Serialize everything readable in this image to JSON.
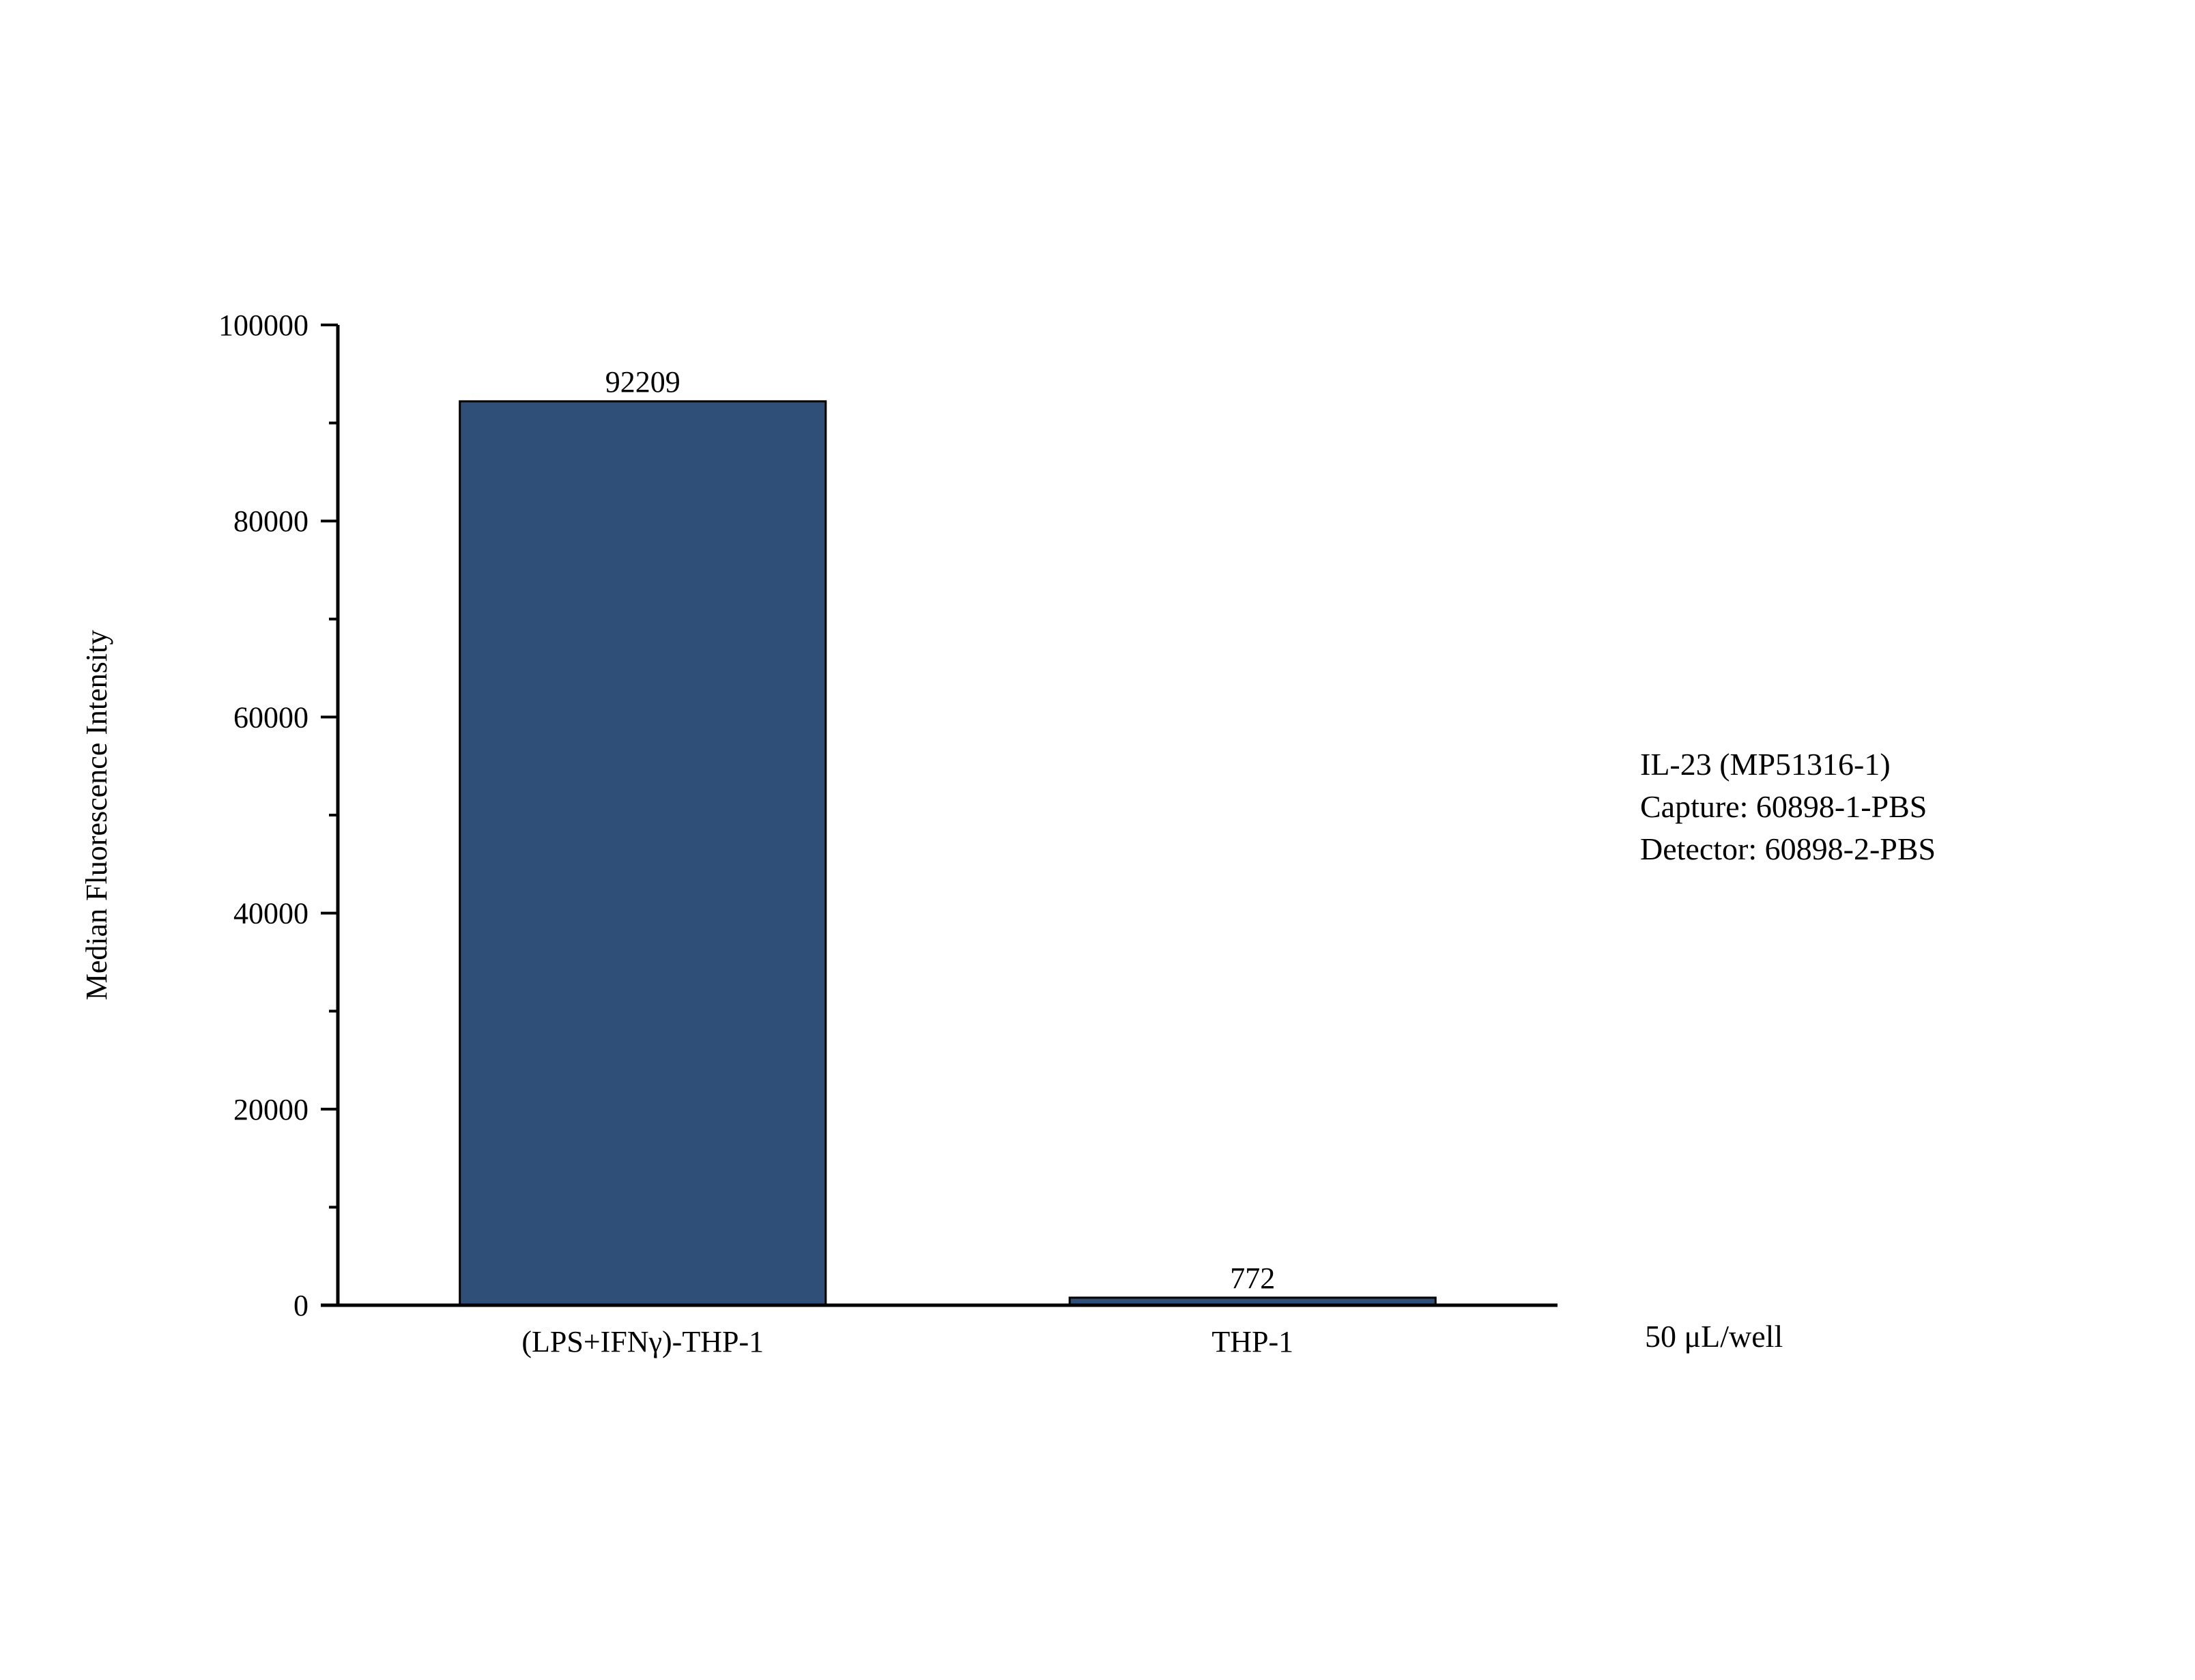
{
  "chart_data": {
    "type": "bar",
    "categories": [
      "(LPS+IFNγ)-THP-1",
      "THP-1"
    ],
    "values": [
      92209,
      772
    ],
    "data_labels": [
      "92209",
      "772"
    ],
    "title": "",
    "xlabel": "",
    "ylabel": "Median Fluorescence Intensity",
    "ylim": [
      0,
      100000
    ],
    "y_major_ticks": [
      0,
      20000,
      40000,
      60000,
      80000,
      100000
    ],
    "y_minor_ticks": [
      10000,
      30000,
      50000,
      70000,
      90000
    ],
    "grid": false,
    "legend": "none",
    "bar_color": "#2f4f78",
    "bar_edge_color": "#000000",
    "annotations": [
      "IL-23 (MP51316-1)",
      "Capture: 60898-1-PBS",
      "Detector: 60898-2-PBS"
    ],
    "footnote": "50 μL/well"
  }
}
